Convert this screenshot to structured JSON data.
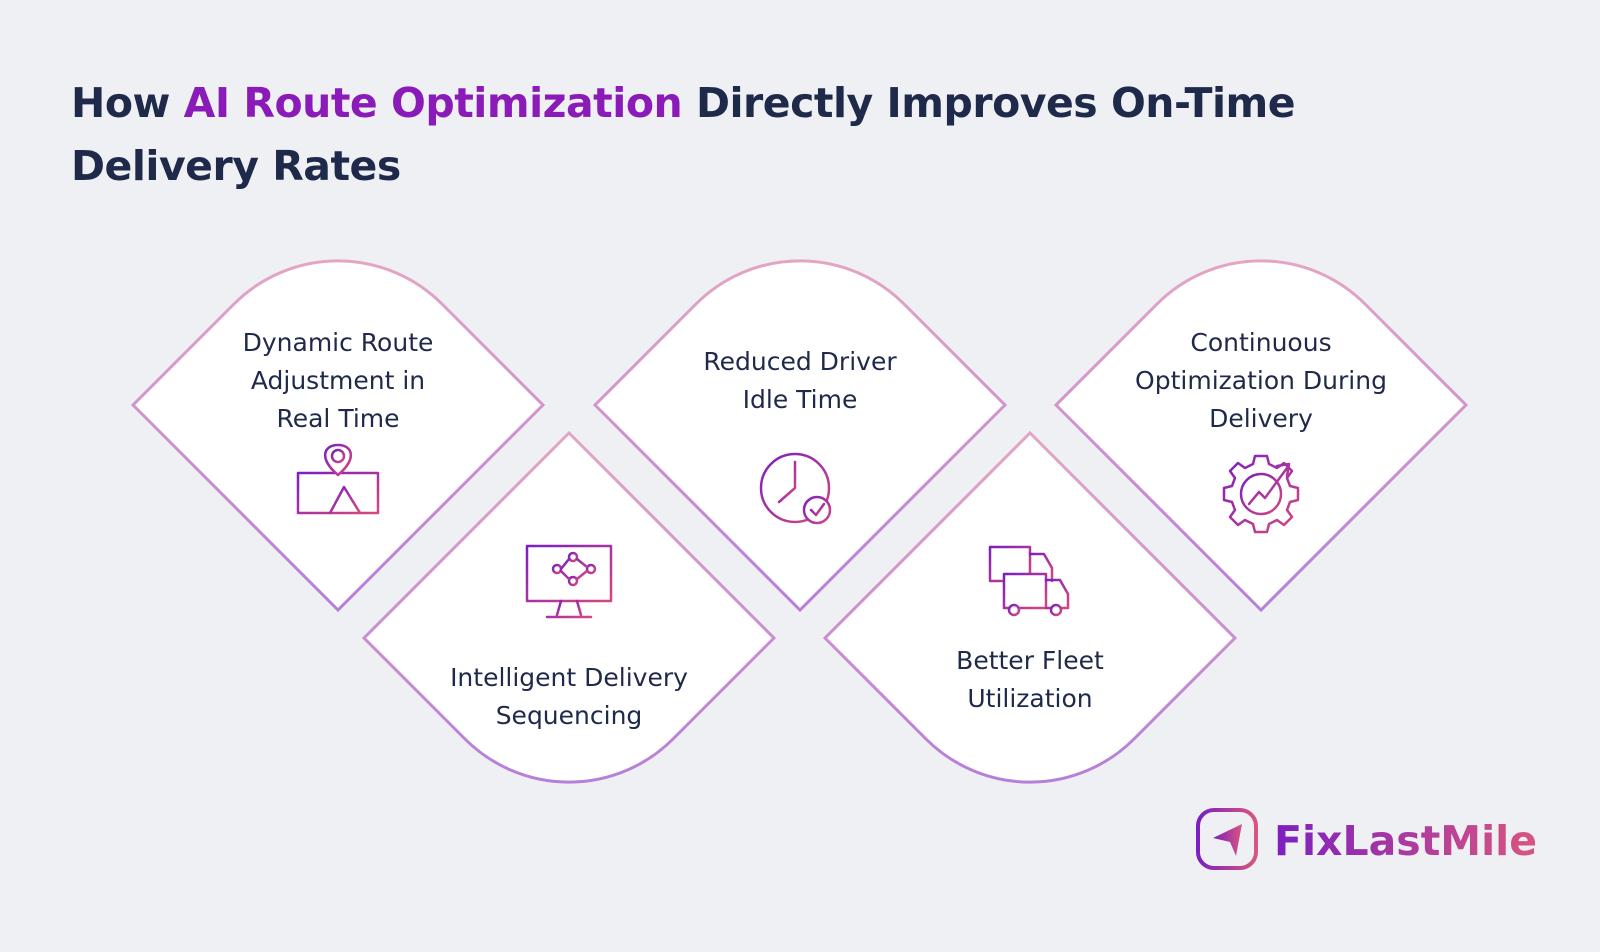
{
  "header": {
    "title_parts": [
      "How ",
      "AI Route Optimization",
      " Directly Improves On-Time",
      "Delivery Rates"
    ]
  },
  "cards": [
    {
      "lines": [
        "Dynamic Route",
        "Adjustment in",
        "Real Time"
      ]
    },
    {
      "lines": [
        "Intelligent Delivery",
        "Sequencing"
      ]
    },
    {
      "lines": [
        "Reduced Driver",
        "Idle Time"
      ]
    },
    {
      "lines": [
        "Better Fleet",
        "Utilization"
      ]
    },
    {
      "lines": [
        "Continuous",
        "Optimization During",
        "Delivery"
      ]
    }
  ],
  "logo": {
    "text": "FixLastMile"
  }
}
